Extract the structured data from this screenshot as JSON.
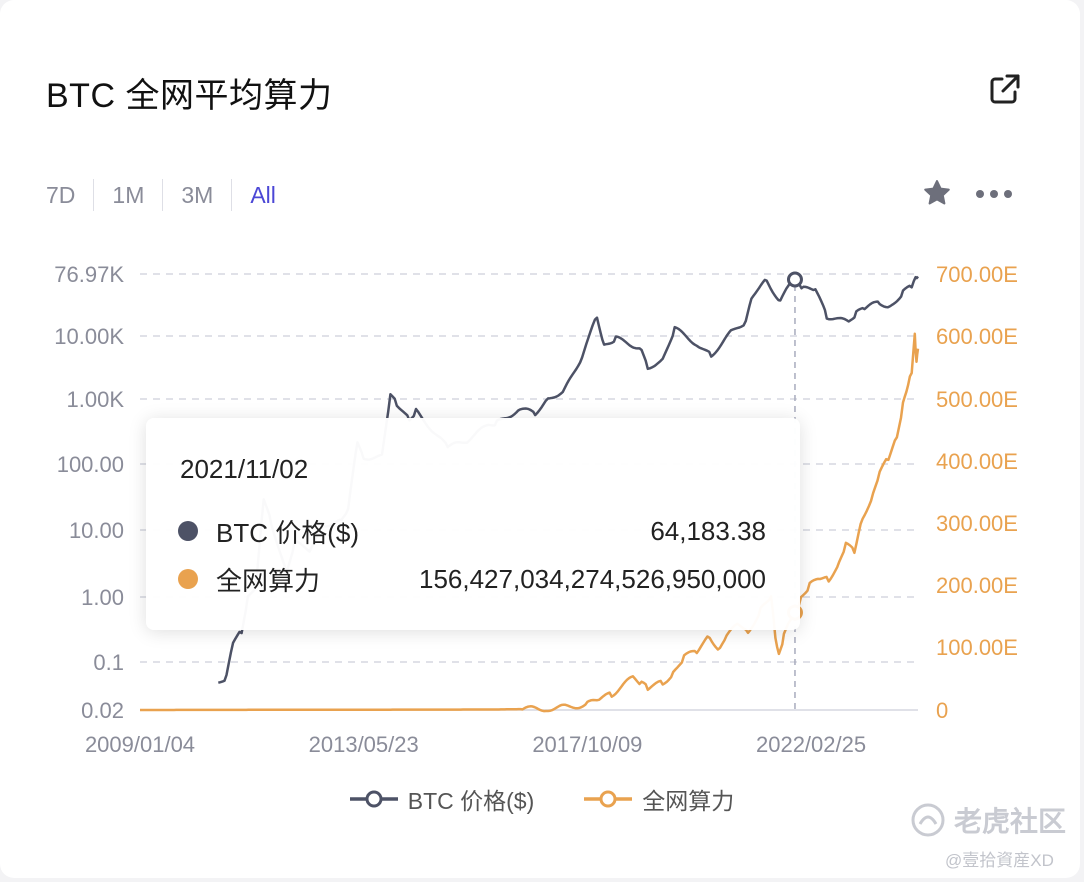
{
  "header": {
    "title": "BTC 全网平均算力"
  },
  "tabs": [
    {
      "label": "7D",
      "active": false
    },
    {
      "label": "1M",
      "active": false
    },
    {
      "label": "3M",
      "active": false
    },
    {
      "label": "All",
      "active": true
    }
  ],
  "icons": {
    "export": "external-link-icon",
    "star": "star-icon",
    "more": "more-dots-icon"
  },
  "colors": {
    "price": "#4d5266",
    "hashrate": "#e9a24f",
    "accent": "#4b47d6"
  },
  "tooltip": {
    "date": "2021/11/02",
    "rows": [
      {
        "name": "BTC 价格($)",
        "value": "64,183.38"
      },
      {
        "name": "全网算力",
        "value": "156,427,034,274,526,950,000"
      }
    ]
  },
  "legend": [
    {
      "label": "BTC 价格($)"
    },
    {
      "label": "全网算力"
    }
  ],
  "watermark": {
    "brand": "老虎社区",
    "handle": "@壹拾資産XD"
  },
  "chart_data": {
    "type": "line",
    "x_range": [
      "2009/01/04",
      "2024/03/31"
    ],
    "x_ticks": [
      "2009/01/04",
      "2013/05/23",
      "2017/10/09",
      "2022/02/25"
    ],
    "left_axis": {
      "scale": "log",
      "ticks": [
        {
          "label": "76.97K",
          "value": 76970
        },
        {
          "label": "10.00K",
          "value": 10000
        },
        {
          "label": "1.00K",
          "value": 1000
        },
        {
          "label": "100.00",
          "value": 100
        },
        {
          "label": "10.00",
          "value": 10
        },
        {
          "label": "1.00",
          "value": 1
        },
        {
          "label": "0.1",
          "value": 0.1
        },
        {
          "label": "0.02",
          "value": 0.02
        }
      ]
    },
    "right_axis": {
      "scale": "linear",
      "ticks": [
        {
          "label": "700.00E",
          "value": 700
        },
        {
          "label": "600.00E",
          "value": 600
        },
        {
          "label": "500.00E",
          "value": 500
        },
        {
          "label": "400.00E",
          "value": 400
        },
        {
          "label": "300.00E",
          "value": 300
        },
        {
          "label": "200.00E",
          "value": 200
        },
        {
          "label": "100.00E",
          "value": 100
        },
        {
          "label": "0",
          "value": 0
        }
      ]
    },
    "grid": true,
    "legend_position": "bottom",
    "hover_date": "2021/11/02",
    "series": [
      {
        "name": "BTC 价格($)",
        "axis": "left",
        "points": [
          [
            "2010/07/18",
            0.05
          ],
          [
            "2010/09/15",
            0.06
          ],
          [
            "2010/11/01",
            0.2
          ],
          [
            "2011/01/01",
            0.3
          ],
          [
            "2011/02/15",
            1.0
          ],
          [
            "2011/04/15",
            1.5
          ],
          [
            "2011/06/08",
            30
          ],
          [
            "2011/08/01",
            13
          ],
          [
            "2011/11/18",
            2.2
          ],
          [
            "2012/01/15",
            6.5
          ],
          [
            "2012/05/01",
            5
          ],
          [
            "2012/08/15",
            12
          ],
          [
            "2012/12/15",
            13.5
          ],
          [
            "2013/02/01",
            20
          ],
          [
            "2013/04/09",
            230
          ],
          [
            "2013/05/23",
            125
          ],
          [
            "2013/10/01",
            130
          ],
          [
            "2013/11/30",
            1150
          ],
          [
            "2014/01/15",
            850
          ],
          [
            "2014/04/15",
            480
          ],
          [
            "2014/06/01",
            650
          ],
          [
            "2015/01/14",
            180
          ],
          [
            "2015/06/01",
            230
          ],
          [
            "2015/11/01",
            400
          ],
          [
            "2016/01/01",
            430
          ],
          [
            "2016/06/15",
            700
          ],
          [
            "2016/10/01",
            610
          ],
          [
            "2017/01/01",
            1000
          ],
          [
            "2017/05/01",
            1400
          ],
          [
            "2017/09/01",
            4700
          ],
          [
            "2017/12/17",
            19500
          ],
          [
            "2018/02/06",
            7000
          ],
          [
            "2018/05/01",
            9200
          ],
          [
            "2018/11/01",
            6300
          ],
          [
            "2018/12/15",
            3200
          ],
          [
            "2019/04/01",
            4100
          ],
          [
            "2019/06/26",
            12800
          ],
          [
            "2019/12/15",
            7100
          ],
          [
            "2020/03/13",
            4900
          ],
          [
            "2020/08/01",
            11300
          ],
          [
            "2020/11/15",
            16000
          ],
          [
            "2021/01/08",
            40000
          ],
          [
            "2021/04/14",
            63000
          ],
          [
            "2021/07/20",
            30000
          ],
          [
            "2021/09/01",
            47000
          ],
          [
            "2021/11/02",
            64183.38
          ],
          [
            "2021/11/10",
            68000
          ],
          [
            "2022/01/01",
            47000
          ],
          [
            "2022/03/28",
            47000
          ],
          [
            "2022/06/18",
            19000
          ],
          [
            "2022/11/21",
            15800
          ],
          [
            "2023/01/15",
            21000
          ],
          [
            "2023/03/15",
            25000
          ],
          [
            "2023/07/01",
            30500
          ],
          [
            "2023/09/11",
            25500
          ],
          [
            "2023/12/15",
            42000
          ],
          [
            "2024/02/15",
            52000
          ],
          [
            "2024/03/14",
            73000
          ],
          [
            "2024/03/31",
            71000
          ]
        ]
      },
      {
        "name": "全网算力",
        "axis": "right",
        "points": [
          [
            "2009/01/04",
            0
          ],
          [
            "2016/01/01",
            0.8
          ],
          [
            "2016/07/01",
            1.5
          ],
          [
            "2017/01/01",
            2.5
          ],
          [
            "2017/06/01",
            5
          ],
          [
            "2017/10/09",
            9
          ],
          [
            "2018/01/01",
            18
          ],
          [
            "2018/04/01",
            25
          ],
          [
            "2018/08/31",
            52
          ],
          [
            "2018/11/01",
            42
          ],
          [
            "2018/12/15",
            35
          ],
          [
            "2019/04/01",
            44
          ],
          [
            "2019/06/15",
            58
          ],
          [
            "2019/09/01",
            85
          ],
          [
            "2019/12/01",
            95
          ],
          [
            "2020/03/01",
            118
          ],
          [
            "2020/05/15",
            96
          ],
          [
            "2020/07/01",
            118
          ],
          [
            "2020/10/01",
            140
          ],
          [
            "2020/12/01",
            125
          ],
          [
            "2021/03/01",
            160
          ],
          [
            "2021/05/15",
            182
          ],
          [
            "2021/06/15",
            120
          ],
          [
            "2021/07/10",
            90
          ],
          [
            "2021/08/15",
            118
          ],
          [
            "2021/10/01",
            145
          ],
          [
            "2021/11/02",
            156.43
          ],
          [
            "2021/12/15",
            180
          ],
          [
            "2022/02/15",
            200
          ],
          [
            "2022/05/01",
            212
          ],
          [
            "2022/07/01",
            210
          ],
          [
            "2022/09/15",
            236
          ],
          [
            "2022/11/01",
            265
          ],
          [
            "2023/01/01",
            255
          ],
          [
            "2023/03/01",
            310
          ],
          [
            "2023/05/15",
            345
          ],
          [
            "2023/07/01",
            380
          ],
          [
            "2023/09/01",
            405
          ],
          [
            "2023/11/01",
            440
          ],
          [
            "2023/12/15",
            490
          ],
          [
            "2024/01/20",
            520
          ],
          [
            "2024/02/15",
            545
          ],
          [
            "2024/03/08",
            605
          ],
          [
            "2024/03/20",
            555
          ],
          [
            "2024/03/31",
            580
          ]
        ]
      }
    ]
  }
}
